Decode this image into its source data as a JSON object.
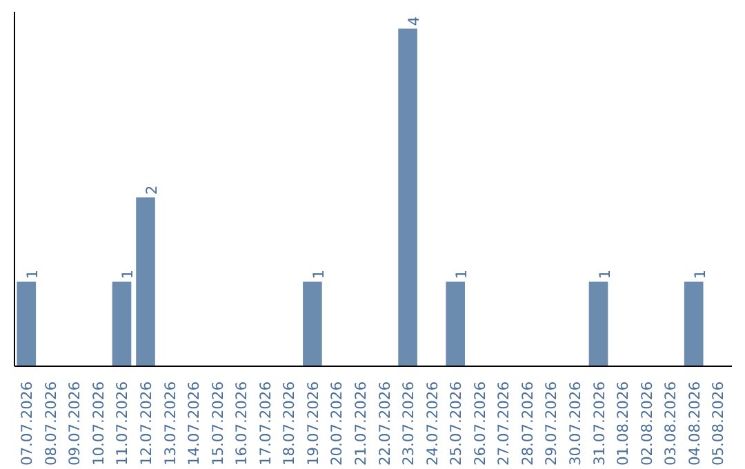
{
  "chart_data": {
    "type": "bar",
    "categories": [
      "07.07.2026",
      "08.07.2026",
      "09.07.2026",
      "10.07.2026",
      "11.07.2026",
      "12.07.2026",
      "13.07.2026",
      "14.07.2026",
      "15.07.2026",
      "16.07.2026",
      "17.07.2026",
      "18.07.2026",
      "19.07.2026",
      "20.07.2026",
      "21.07.2026",
      "22.07.2026",
      "23.07.2026",
      "24.07.2026",
      "25.07.2026",
      "26.07.2026",
      "27.07.2026",
      "28.07.2026",
      "29.07.2026",
      "30.07.2026",
      "31.07.2026",
      "01.08.2026",
      "02.08.2026",
      "03.08.2026",
      "04.08.2026",
      "05.08.2026"
    ],
    "values": [
      1,
      0,
      0,
      0,
      1,
      2,
      0,
      0,
      0,
      0,
      0,
      0,
      1,
      0,
      0,
      0,
      4,
      0,
      1,
      0,
      0,
      0,
      0,
      0,
      1,
      0,
      0,
      0,
      1,
      0
    ],
    "value_labels": [
      "1",
      null,
      null,
      null,
      "1",
      "2",
      null,
      null,
      null,
      null,
      null,
      null,
      "1",
      null,
      null,
      null,
      "4",
      null,
      "1",
      null,
      null,
      null,
      null,
      null,
      "1",
      null,
      null,
      null,
      "1",
      null
    ],
    "color": "#6b8caf",
    "grid": false,
    "tick_labels": "x"
  }
}
